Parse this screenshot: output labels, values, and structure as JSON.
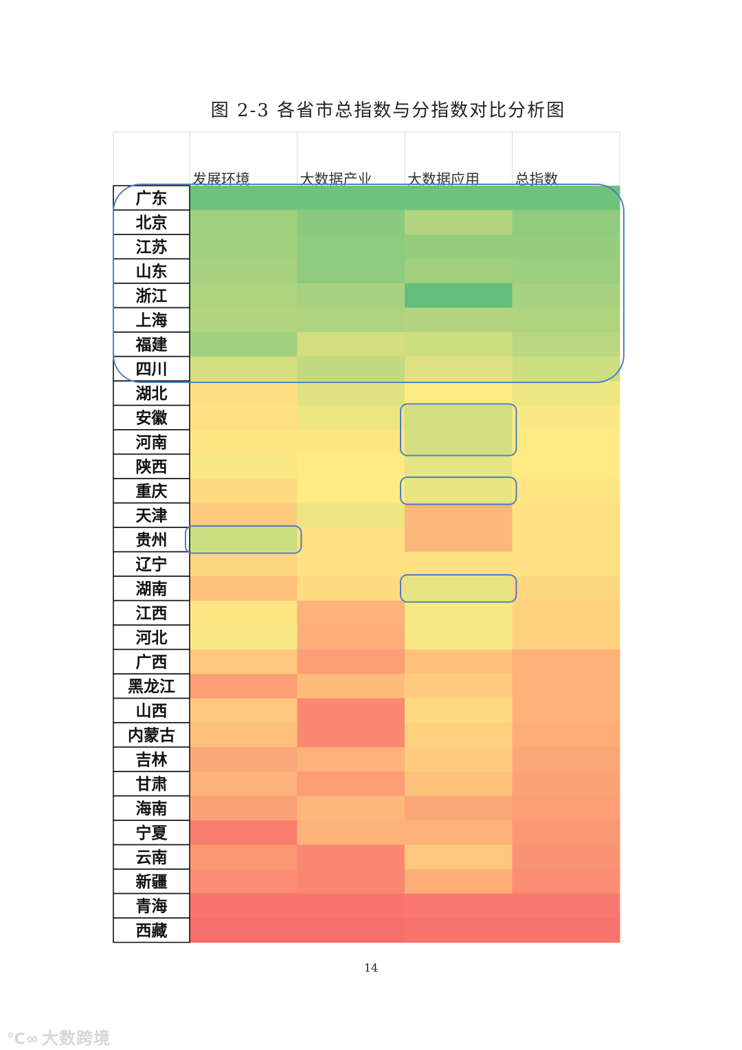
{
  "page": {
    "title": "图 2-3  各省市总指数与分指数对比分析图",
    "page_number": "14",
    "watermark": "大数跨境"
  },
  "chart_data": {
    "type": "heatmap",
    "title": "图 2-3  各省市总指数与分指数对比分析图",
    "columns": [
      "发展环境",
      "大数据产业",
      "大数据应用",
      "总指数"
    ],
    "rows": [
      "广东",
      "北京",
      "江苏",
      "山东",
      "浙江",
      "上海",
      "福建",
      "四川",
      "湖北",
      "安徽",
      "河南",
      "陕西",
      "重庆",
      "天津",
      "贵州",
      "辽宁",
      "湖南",
      "江西",
      "河北",
      "广西",
      "黑龙江",
      "山西",
      "内蒙古",
      "吉林",
      "甘肃",
      "海南",
      "宁夏",
      "云南",
      "新疆",
      "青海",
      "西藏"
    ],
    "colorscale": {
      "low": "#f8696b",
      "mid": "#ffeb84",
      "high": "#63be7b"
    },
    "scale_note": "0 = lowest (red), 1 = highest (green)",
    "values": [
      [
        0.96,
        0.96,
        0.96,
        0.96
      ],
      [
        0.8,
        0.88,
        0.74,
        0.86
      ],
      [
        0.8,
        0.86,
        0.84,
        0.84
      ],
      [
        0.78,
        0.86,
        0.8,
        0.82
      ],
      [
        0.76,
        0.78,
        1.0,
        0.78
      ],
      [
        0.74,
        0.76,
        0.74,
        0.76
      ],
      [
        0.8,
        0.64,
        0.66,
        0.72
      ],
      [
        0.64,
        0.7,
        0.6,
        0.66
      ],
      [
        0.45,
        0.6,
        0.5,
        0.56
      ],
      [
        0.46,
        0.56,
        0.64,
        0.52
      ],
      [
        0.48,
        0.48,
        0.64,
        0.5
      ],
      [
        0.52,
        0.5,
        0.58,
        0.5
      ],
      [
        0.44,
        0.5,
        0.58,
        0.48
      ],
      [
        0.38,
        0.56,
        0.3,
        0.46
      ],
      [
        0.66,
        0.46,
        0.3,
        0.46
      ],
      [
        0.42,
        0.46,
        0.46,
        0.46
      ],
      [
        0.34,
        0.44,
        0.58,
        0.42
      ],
      [
        0.48,
        0.28,
        0.52,
        0.4
      ],
      [
        0.52,
        0.26,
        0.52,
        0.4
      ],
      [
        0.36,
        0.2,
        0.34,
        0.28
      ],
      [
        0.2,
        0.32,
        0.38,
        0.28
      ],
      [
        0.36,
        0.12,
        0.44,
        0.28
      ],
      [
        0.34,
        0.12,
        0.4,
        0.26
      ],
      [
        0.24,
        0.28,
        0.38,
        0.24
      ],
      [
        0.28,
        0.2,
        0.34,
        0.22
      ],
      [
        0.22,
        0.3,
        0.24,
        0.2
      ],
      [
        0.08,
        0.28,
        0.28,
        0.18
      ],
      [
        0.18,
        0.12,
        0.36,
        0.16
      ],
      [
        0.14,
        0.12,
        0.26,
        0.14
      ],
      [
        0.04,
        0.04,
        0.06,
        0.06
      ],
      [
        0.02,
        0.02,
        0.04,
        0.04
      ]
    ],
    "highlights": [
      {
        "from_row": 0,
        "to_row": 7,
        "from_col": 0,
        "to_col": 3,
        "color": "#4a7fc1"
      },
      {
        "from_row": 9,
        "to_row": 10,
        "from_col": 2,
        "to_col": 2,
        "color": "#4a7fc1"
      },
      {
        "from_row": 12,
        "to_row": 12,
        "from_col": 2,
        "to_col": 2,
        "color": "#4a7fc1"
      },
      {
        "from_row": 14,
        "to_row": 14,
        "from_col": 0,
        "to_col": 0,
        "color": "#4a7fc1"
      },
      {
        "from_row": 16,
        "to_row": 16,
        "from_col": 2,
        "to_col": 2,
        "color": "#4a7fc1"
      }
    ]
  }
}
